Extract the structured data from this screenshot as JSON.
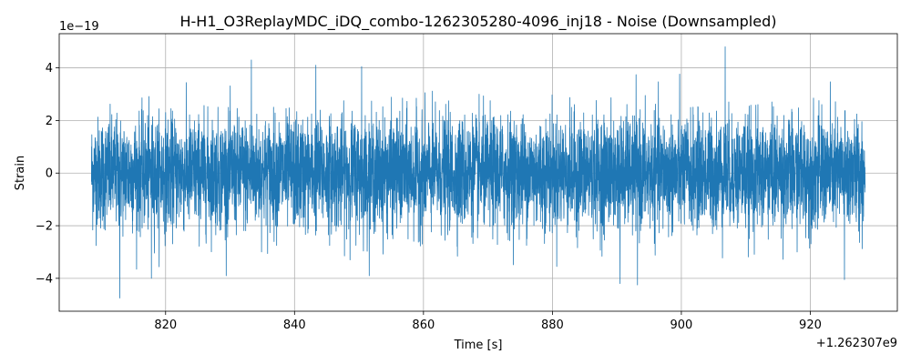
{
  "chart_data": {
    "type": "line",
    "title": "H-H1_O3ReplayMDC_iDQ_combo-1262305280-4096_inj18 - Noise (Downsampled)",
    "xlabel": "Time [s]",
    "ylabel": "Strain",
    "x_offset_label": "+1.262307e9",
    "y_scale_label": "1e−19",
    "xlim": [
      803.5,
      933.5
    ],
    "ylim": [
      -5.25,
      5.3
    ],
    "x_ticks": [
      820,
      840,
      860,
      880,
      900,
      920
    ],
    "x_tick_labels": [
      "820",
      "840",
      "860",
      "880",
      "900",
      "920"
    ],
    "y_ticks": [
      -4,
      -2,
      0,
      2,
      4
    ],
    "y_tick_labels": [
      "−4",
      "−2",
      "0",
      "2",
      "4"
    ],
    "grid": true,
    "series": [
      {
        "color": "#1f77b4",
        "x_start": 808.5,
        "x_end": 928.5,
        "noise_sigma": 1.05,
        "peaks": [
          {
            "x": 812.9,
            "y": -4.75
          },
          {
            "x": 833.3,
            "y": 4.3
          },
          {
            "x": 906.8,
            "y": 4.8
          },
          {
            "x": 850.4,
            "y": 4.05
          },
          {
            "x": 893.2,
            "y": -4.25
          },
          {
            "x": 890.5,
            "y": -4.2
          },
          {
            "x": 817.8,
            "y": -4.0
          },
          {
            "x": 843.3,
            "y": 4.1
          },
          {
            "x": 925.3,
            "y": -4.05
          }
        ]
      }
    ]
  }
}
